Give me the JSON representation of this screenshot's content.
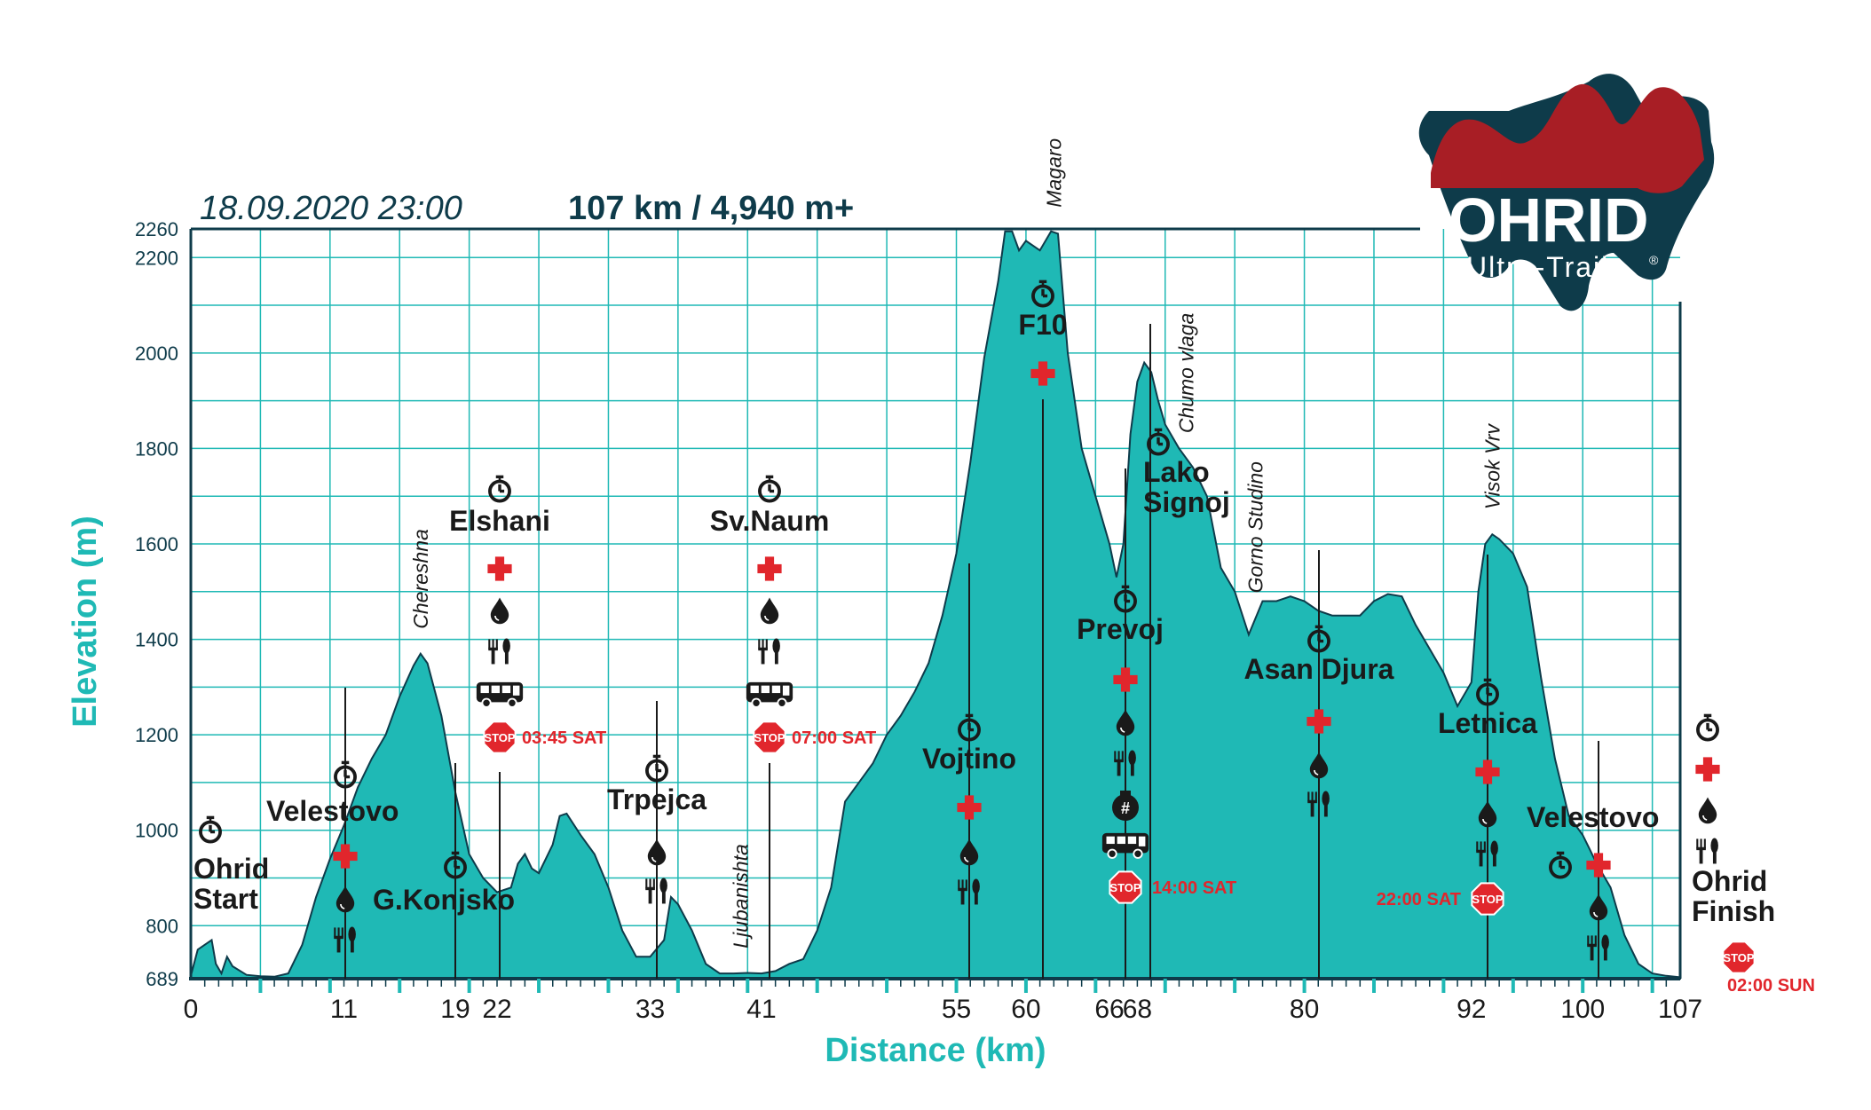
{
  "header": {
    "date": "18.09.2020 23:00",
    "stats": "107 km / 4,940 m+"
  },
  "logo": {
    "name": "OHRID",
    "subtitle": "Ultra-Trail",
    "mark": "®"
  },
  "colors": {
    "profile_fill": "#1fb9b5",
    "grid": "#1fb9b5",
    "navy": "#0e3b4a",
    "logo_red": "#a81e25",
    "cross": "#e1262c",
    "stop": "#e1262c"
  },
  "chart_data": {
    "type": "area",
    "xlabel": "Distance (km)",
    "ylabel": "Elevation (m)",
    "xlim": [
      0,
      107
    ],
    "ylim": [
      689,
      2260
    ],
    "grid": true,
    "x_ticks": [
      0,
      11,
      19,
      22,
      33,
      41,
      55,
      60,
      66,
      68,
      80,
      92,
      100,
      107
    ],
    "y_ticks": [
      689,
      800,
      1000,
      1200,
      1400,
      1600,
      1800,
      2000,
      2200,
      2260
    ],
    "profile": [
      [
        0,
        695
      ],
      [
        0.5,
        750
      ],
      [
        1.5,
        770
      ],
      [
        1.8,
        720
      ],
      [
        2.2,
        700
      ],
      [
        2.6,
        735
      ],
      [
        3,
        715
      ],
      [
        4,
        697
      ],
      [
        5,
        694
      ],
      [
        6,
        693
      ],
      [
        7,
        700
      ],
      [
        8,
        760
      ],
      [
        9,
        860
      ],
      [
        10,
        940
      ],
      [
        11,
        1010
      ],
      [
        12,
        1090
      ],
      [
        13,
        1150
      ],
      [
        14,
        1200
      ],
      [
        15,
        1280
      ],
      [
        16,
        1345
      ],
      [
        16.5,
        1370
      ],
      [
        17,
        1350
      ],
      [
        18,
        1240
      ],
      [
        19,
        1080
      ],
      [
        20,
        950
      ],
      [
        21,
        900
      ],
      [
        22,
        870
      ],
      [
        23,
        880
      ],
      [
        23.5,
        930
      ],
      [
        24,
        950
      ],
      [
        24.5,
        920
      ],
      [
        25,
        910
      ],
      [
        26,
        970
      ],
      [
        26.5,
        1030
      ],
      [
        27,
        1035
      ],
      [
        28,
        990
      ],
      [
        29,
        950
      ],
      [
        30,
        880
      ],
      [
        31,
        790
      ],
      [
        32,
        735
      ],
      [
        33,
        735
      ],
      [
        34,
        770
      ],
      [
        34.5,
        860
      ],
      [
        35,
        845
      ],
      [
        36,
        790
      ],
      [
        37,
        720
      ],
      [
        38,
        700
      ],
      [
        39,
        700
      ],
      [
        40,
        701
      ],
      [
        41,
        700
      ],
      [
        42,
        705
      ],
      [
        43,
        720
      ],
      [
        44,
        730
      ],
      [
        45,
        790
      ],
      [
        46,
        880
      ],
      [
        47,
        1060
      ],
      [
        48,
        1100
      ],
      [
        49,
        1140
      ],
      [
        50,
        1200
      ],
      [
        51,
        1240
      ],
      [
        52,
        1290
      ],
      [
        53,
        1350
      ],
      [
        54,
        1450
      ],
      [
        55,
        1580
      ],
      [
        56,
        1770
      ],
      [
        57,
        1990
      ],
      [
        58,
        2150
      ],
      [
        58.5,
        2255
      ],
      [
        59,
        2255
      ],
      [
        59.5,
        2215
      ],
      [
        60,
        2235
      ],
      [
        61,
        2215
      ],
      [
        61.8,
        2255
      ],
      [
        62.3,
        2250
      ],
      [
        63,
        2000
      ],
      [
        64,
        1800
      ],
      [
        65,
        1700
      ],
      [
        66,
        1600
      ],
      [
        66.5,
        1530
      ],
      [
        67,
        1600
      ],
      [
        67.5,
        1830
      ],
      [
        68,
        1940
      ],
      [
        68.5,
        1980
      ],
      [
        69,
        1960
      ],
      [
        69.5,
        1900
      ],
      [
        70,
        1850
      ],
      [
        71,
        1800
      ],
      [
        72,
        1760
      ],
      [
        73,
        1700
      ],
      [
        74,
        1550
      ],
      [
        75,
        1500
      ],
      [
        76,
        1410
      ],
      [
        77,
        1480
      ],
      [
        78,
        1480
      ],
      [
        79,
        1490
      ],
      [
        80,
        1480
      ],
      [
        81,
        1460
      ],
      [
        82,
        1450
      ],
      [
        83,
        1450
      ],
      [
        84,
        1450
      ],
      [
        85,
        1480
      ],
      [
        86,
        1495
      ],
      [
        87,
        1490
      ],
      [
        88,
        1430
      ],
      [
        89,
        1380
      ],
      [
        90,
        1330
      ],
      [
        91,
        1260
      ],
      [
        92,
        1310
      ],
      [
        92.5,
        1500
      ],
      [
        93,
        1600
      ],
      [
        93.5,
        1620
      ],
      [
        94,
        1610
      ],
      [
        95,
        1580
      ],
      [
        96,
        1510
      ],
      [
        97,
        1320
      ],
      [
        98,
        1150
      ],
      [
        99,
        1030
      ],
      [
        100,
        990
      ],
      [
        100.5,
        960
      ],
      [
        101,
        930
      ],
      [
        102,
        880
      ],
      [
        103,
        780
      ],
      [
        104,
        720
      ],
      [
        105,
        700
      ],
      [
        106,
        695
      ],
      [
        107,
        692
      ]
    ],
    "peaks": [
      {
        "name": "Chereshna",
        "km": 16.5
      },
      {
        "name": "Ljubanishta",
        "km": 39.5
      },
      {
        "name": "Magaro",
        "km": 62
      },
      {
        "name": "Chumo vlaga",
        "km": 71.5
      },
      {
        "name": "Gorno Studino",
        "km": 76.5
      },
      {
        "name": "Visok Vrv",
        "km": 93.5
      }
    ],
    "stations": [
      {
        "name_lines": [
          "Ohrid",
          "Start"
        ],
        "km": 0,
        "services": [
          "timing"
        ]
      },
      {
        "name_lines": [
          "Velestovo"
        ],
        "km": 11,
        "services": [
          "timing",
          "medical",
          "water",
          "food"
        ]
      },
      {
        "name_lines": [
          "G.Konjsko"
        ],
        "km": 19,
        "services": [
          "timing"
        ]
      },
      {
        "name_lines": [
          "Elshani"
        ],
        "km": 22,
        "services": [
          "timing",
          "medical",
          "water",
          "food",
          "bus"
        ],
        "cutoff": "03:45 SAT"
      },
      {
        "name_lines": [
          "Trpejca"
        ],
        "km": 33,
        "services": [
          "timing",
          "water",
          "food"
        ]
      },
      {
        "name_lines": [
          "Sv.Naum"
        ],
        "km": 41,
        "services": [
          "timing",
          "medical",
          "water",
          "food",
          "bus"
        ],
        "cutoff": "07:00 SAT"
      },
      {
        "name_lines": [
          "Vojtino"
        ],
        "km": 55,
        "services": [
          "timing",
          "medical",
          "water",
          "food"
        ]
      },
      {
        "name_lines": [
          "F10"
        ],
        "km": 60,
        "services": [
          "timing",
          "medical"
        ]
      },
      {
        "name_lines": [
          "Prevoj"
        ],
        "km": 66,
        "services": [
          "timing",
          "medical",
          "water",
          "food",
          "drop-bag",
          "bus"
        ],
        "cutoff": "14:00 SAT"
      },
      {
        "name_lines": [
          "Lako",
          "Signoj"
        ],
        "km": 68,
        "services": [
          "timing"
        ]
      },
      {
        "name_lines": [
          "Asan Djura"
        ],
        "km": 80,
        "services": [
          "timing",
          "medical",
          "water",
          "food"
        ]
      },
      {
        "name_lines": [
          "Letnica"
        ],
        "km": 92,
        "services": [
          "timing",
          "medical",
          "water",
          "food"
        ],
        "cutoff": "22:00 SAT"
      },
      {
        "name_lines": [
          "Velestovo"
        ],
        "km": 100,
        "services": [
          "timing",
          "medical",
          "water",
          "food"
        ]
      },
      {
        "name_lines": [
          "Ohrid",
          "Finish"
        ],
        "km": 107,
        "services": [
          "timing",
          "medical",
          "water",
          "food"
        ],
        "cutoff": "02:00 SUN"
      }
    ],
    "stop_sign_label": "STOP",
    "drop_bag_label": "#"
  }
}
